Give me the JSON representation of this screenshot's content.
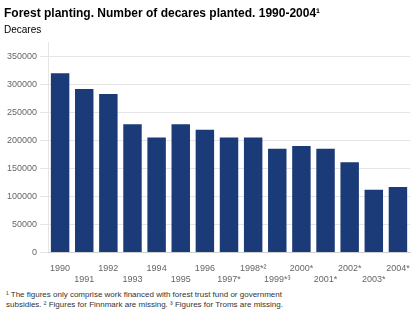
{
  "chart_data": {
    "type": "bar",
    "title": "Forest planting. Number of decares planted. 1990-2004¹",
    "ylabel": "Decares",
    "annotations": [
      "¹ The figures only comprise work financed with forest trust fund or government\nsubsidies. ² Figures for Finnmark are missing. ³ Figures for Troms are missing."
    ],
    "categories": [
      "1990",
      "1991",
      "1992",
      "1993",
      "1994",
      "1995",
      "1996",
      "1997*",
      "1998*²",
      "1999*³",
      "2000*",
      "2001*",
      "2002*",
      "2003*",
      "2004*"
    ],
    "values": [
      320000,
      292000,
      283000,
      229000,
      205000,
      229000,
      219000,
      205000,
      205000,
      185000,
      190000,
      185000,
      161000,
      112000,
      117000
    ],
    "color": "#1b3a78",
    "ylim": [
      0,
      375000
    ],
    "yticks": [
      0,
      50000,
      100000,
      150000,
      200000,
      250000,
      300000,
      350000
    ],
    "grid": true
  }
}
